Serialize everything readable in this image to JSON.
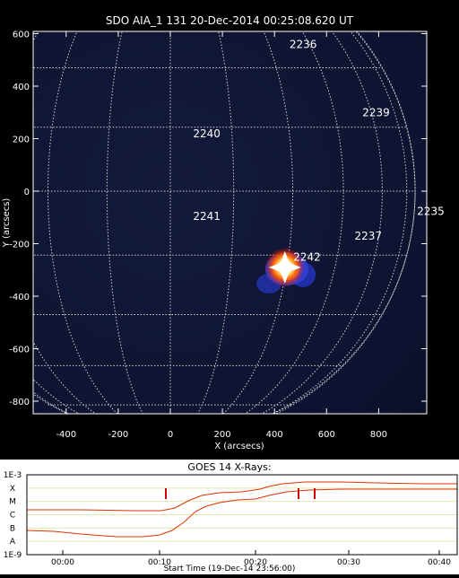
{
  "image": {
    "title": "SDO AIA_1 131 20-Dec-2014 00:25:08.620 UT",
    "x_label": "X (arcsecs)",
    "y_label": "Y (arcsecs)",
    "x_ticks": [
      "-400",
      "-200",
      "0",
      "200",
      "400",
      "600",
      "800"
    ],
    "y_ticks": [
      "600",
      "400",
      "200",
      "0",
      "-200",
      "-400",
      "-600",
      "-800"
    ],
    "regions": [
      {
        "label": "2236",
        "x": 510,
        "y": 545
      },
      {
        "label": "2239",
        "x": 790,
        "y": 285
      },
      {
        "label": "2240",
        "x": 140,
        "y": 205
      },
      {
        "label": "2235",
        "x": 1000,
        "y": -90
      },
      {
        "label": "2241",
        "x": 140,
        "y": -110
      },
      {
        "label": "2237",
        "x": 760,
        "y": -185
      },
      {
        "label": "2242",
        "x": 525,
        "y": -265
      }
    ],
    "flare": {
      "x": 440,
      "y": -290
    }
  },
  "goes": {
    "title": "GOES 14 X-Rays:",
    "y_labels": [
      "1E-3",
      "X",
      "M",
      "C",
      "B",
      "A",
      "1E-9"
    ],
    "x_ticks": [
      "00:00",
      "00:10",
      "00:20",
      "00:30",
      "00:40"
    ],
    "start_time": "Start Time (19-Dec-14 23:56:00)",
    "colors": {
      "curve": "#dd3300",
      "marker": "#cc0000",
      "grid": "#e6e6b0"
    }
  }
}
